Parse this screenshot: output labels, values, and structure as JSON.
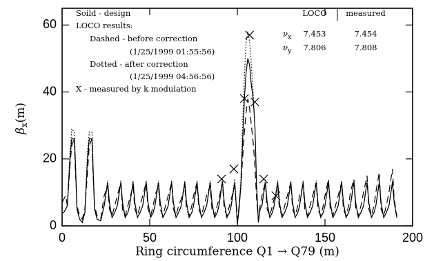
{
  "chart_data": {
    "type": "line",
    "xlabel": "Ring circumference Q1 → Q79 (m)",
    "ylabel": {
      "symbol": "β",
      "sub": "x",
      "unit": "(m)"
    },
    "xlim": [
      0,
      200
    ],
    "ylim": [
      0,
      65
    ],
    "xticks": [
      0,
      50,
      100,
      150,
      200
    ],
    "yticks": [
      0,
      20,
      40,
      60
    ],
    "annotations": [
      "Soild - design",
      "LOCO results:",
      "Dashed - before correction",
      "(1/25/1999 01:55:56)",
      "Dotted - after correction",
      "(1/25/1999 04:56:56)",
      "X - measured by k modulation"
    ],
    "tune_table": {
      "headers": [
        "LOCO",
        "measured"
      ],
      "rows": [
        {
          "symbol": "ν",
          "sub": "x",
          "values": [
            "7.453",
            "7.454"
          ]
        },
        {
          "symbol": "ν",
          "sub": "y",
          "values": [
            "7.806",
            "7.808"
          ]
        }
      ]
    },
    "x": [
      0,
      1,
      2,
      3,
      4.5,
      5.5,
      7,
      7.5,
      8.5,
      10,
      11.5,
      13,
      14.5,
      15.5,
      17,
      17.5,
      18.5,
      20,
      22,
      24,
      26,
      27,
      28.5,
      30,
      31.5,
      33.5,
      34.5,
      36,
      37.5,
      38.5,
      40.5,
      41.5,
      43,
      44.5,
      46,
      48,
      49,
      50.5,
      52,
      53,
      55,
      56,
      57.5,
      59,
      60.5,
      62.5,
      63.5,
      65,
      66.5,
      68,
      70,
      71,
      72.5,
      74,
      75,
      77,
      78,
      79.5,
      81,
      82.5,
      84.5,
      85.5,
      87,
      88.5,
      89.5,
      91.5,
      92.5,
      94,
      95.5,
      96.5,
      98.5,
      99.5,
      100,
      101,
      102,
      103,
      104,
      105,
      106,
      107,
      108,
      109,
      110,
      111,
      112,
      113,
      114,
      116,
      117,
      118.5,
      120,
      121,
      123,
      124,
      125.5,
      127,
      128.5,
      130.5,
      131.5,
      133,
      134.5,
      135.5,
      137.5,
      138.5,
      140,
      141.5,
      143,
      145,
      146,
      147.5,
      149,
      150,
      152,
      153,
      154.5,
      156,
      157.5,
      159.5,
      160.5,
      162,
      163.5,
      164.5,
      166.5,
      167.5,
      169,
      170.5,
      172,
      174,
      175,
      176.5,
      178,
      179,
      181,
      182,
      183.5,
      185,
      186.5,
      188.5,
      189.5,
      191
    ],
    "series": [
      {
        "style": "solid",
        "color": "#000000",
        "values": [
          4,
          4,
          5,
          6,
          20,
          26,
          26,
          20,
          5,
          2,
          1,
          4,
          20,
          26,
          26,
          20,
          5,
          2,
          1.5,
          6,
          13,
          7,
          2.5,
          4,
          6,
          13,
          7,
          2.5,
          4,
          6,
          13,
          7,
          2.5,
          4,
          6,
          13,
          7,
          2.5,
          4,
          6,
          13,
          7,
          2.5,
          4,
          6,
          13,
          7,
          2.5,
          4,
          6,
          13,
          7,
          2.5,
          4,
          6,
          13,
          7,
          2.5,
          4,
          6,
          13,
          7,
          2.5,
          4,
          6,
          13,
          7,
          2.5,
          4,
          6,
          13,
          5,
          0.5,
          5,
          12,
          25,
          38,
          46,
          50,
          48,
          42,
          38,
          30,
          12,
          1,
          5,
          6,
          13,
          7,
          2.5,
          4,
          6,
          13,
          7,
          2.5,
          4,
          6,
          13,
          7,
          2.5,
          4,
          6,
          13,
          7,
          2.5,
          4,
          6,
          13,
          7,
          2.5,
          4,
          6,
          13,
          7,
          2.5,
          4,
          6,
          13,
          7,
          2.5,
          4,
          6,
          13,
          7,
          2.5,
          4,
          6,
          13,
          7,
          2.5,
          4,
          6,
          13,
          7,
          2.5,
          4,
          6,
          13,
          7,
          2.5
        ]
      },
      {
        "style": "dashed",
        "color": "#000000",
        "values": [
          7,
          8,
          9,
          6,
          18,
          24,
          26,
          18,
          6,
          3,
          2,
          5,
          16,
          24,
          26,
          18,
          6,
          3,
          2,
          9,
          12,
          5,
          3,
          6,
          9,
          13,
          5,
          3,
          6,
          8,
          12,
          5,
          3,
          6,
          9,
          13,
          5,
          3,
          6,
          9,
          12,
          5,
          3,
          6,
          9,
          13,
          5,
          3,
          6,
          8,
          12,
          5,
          3,
          6,
          9,
          13,
          5,
          3,
          6,
          9,
          12,
          5,
          3,
          6,
          8,
          13,
          5,
          3,
          6,
          8,
          12,
          6,
          2,
          6,
          12,
          20,
          28,
          34,
          38,
          35,
          30,
          25,
          18,
          8,
          2,
          6,
          9,
          13,
          5,
          3,
          6,
          8,
          12,
          5,
          3,
          6,
          9,
          13,
          5,
          3,
          6,
          9,
          12,
          5,
          3,
          6,
          9,
          13,
          5,
          3,
          6,
          9,
          14,
          5,
          3,
          6,
          9,
          13,
          5,
          3,
          6,
          10,
          14,
          5,
          3,
          6,
          10,
          15,
          5,
          3,
          6,
          10,
          16,
          5,
          3,
          6,
          10,
          17,
          8,
          3
        ]
      },
      {
        "style": "dotted",
        "color": "#000000",
        "values": [
          4,
          4,
          5,
          6,
          22,
          29,
          28,
          22,
          5,
          2,
          1,
          4,
          22,
          28,
          28,
          22,
          5,
          2,
          1.5,
          6,
          13.5,
          7,
          2.5,
          4,
          6,
          13.5,
          7,
          2.5,
          4,
          6,
          13.5,
          7,
          2.5,
          4,
          6,
          13.5,
          7,
          2.5,
          4,
          6,
          13.5,
          7,
          2.5,
          4,
          6,
          13.5,
          7,
          2.5,
          4,
          6,
          13.5,
          7,
          2.5,
          4,
          6,
          13.5,
          7,
          2.5,
          4,
          6,
          13.5,
          7,
          2.5,
          4,
          6,
          14,
          7,
          2.5,
          4,
          6,
          14,
          5,
          0.5,
          6,
          14,
          30,
          45,
          55,
          58,
          55,
          48,
          40,
          30,
          12,
          1,
          5,
          6,
          14,
          7,
          2.5,
          4,
          6,
          13.5,
          7,
          2.5,
          4,
          6,
          13.5,
          7,
          2.5,
          4,
          6,
          13.5,
          7,
          2.5,
          4,
          6,
          13.5,
          7,
          2.5,
          4,
          6,
          13.5,
          7,
          2.5,
          4,
          6,
          13.5,
          7,
          2.5,
          4,
          6,
          13.5,
          7,
          2.5,
          4,
          6,
          13.5,
          7,
          2.5,
          4,
          6,
          13.5,
          7,
          2.5,
          4,
          6,
          13.5,
          7,
          2.5
        ]
      },
      {
        "type": "scatter",
        "marker": "x",
        "color": "#000000",
        "x": [
          91,
          98,
          104,
          107,
          110,
          115,
          122
        ],
        "values": [
          14,
          17,
          38,
          57,
          37,
          14,
          9
        ]
      }
    ]
  }
}
